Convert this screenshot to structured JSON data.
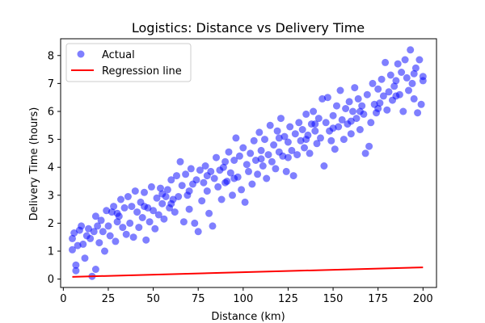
{
  "colors": {
    "points": "#0000ff",
    "regression": "#ff0000",
    "axes": "#000000",
    "background": "#ffffff"
  },
  "chart_data": {
    "type": "scatter",
    "title": "Logistics: Distance vs Delivery Time",
    "xlabel": "Distance (km)",
    "ylabel": "Delivery Time (hours)",
    "xlim": [
      -1.5,
      207.5
    ],
    "ylim": [
      -0.3,
      8.6
    ],
    "xticks": [
      0,
      25,
      50,
      75,
      100,
      125,
      150,
      175,
      200
    ],
    "yticks": [
      0,
      1,
      2,
      3,
      4,
      5,
      6,
      7,
      8
    ],
    "grid": false,
    "legend": {
      "placement": "top-left",
      "entries": [
        "Actual",
        "Regression line"
      ]
    },
    "series": [
      {
        "name": "Actual",
        "kind": "scatter",
        "color": "#0000ff",
        "points": [
          [
            5,
            1.05
          ],
          [
            5,
            1.45
          ],
          [
            6,
            1.65
          ],
          [
            7,
            0.3
          ],
          [
            7,
            0.5
          ],
          [
            8,
            1.2
          ],
          [
            9,
            1.75
          ],
          [
            10,
            1.9
          ],
          [
            11,
            1.25
          ],
          [
            12,
            0.75
          ],
          [
            13,
            1.55
          ],
          [
            14,
            1.8
          ],
          [
            15,
            1.45
          ],
          [
            16,
            0.1
          ],
          [
            17,
            1.7
          ],
          [
            18,
            2.25
          ],
          [
            18,
            0.35
          ],
          [
            19,
            1.9
          ],
          [
            20,
            1.3
          ],
          [
            21,
            2.1
          ],
          [
            22,
            1.7
          ],
          [
            23,
            1.0
          ],
          [
            24,
            2.45
          ],
          [
            25,
            1.9
          ],
          [
            26,
            1.55
          ],
          [
            27,
            2.4
          ],
          [
            28,
            2.6
          ],
          [
            29,
            1.35
          ],
          [
            30,
            2.05
          ],
          [
            31,
            2.25
          ],
          [
            32,
            2.85
          ],
          [
            33,
            1.85
          ],
          [
            34,
            2.55
          ],
          [
            35,
            1.6
          ],
          [
            36,
            2.95
          ],
          [
            37,
            2.0
          ],
          [
            38,
            2.6
          ],
          [
            39,
            1.5
          ],
          [
            40,
            3.15
          ],
          [
            41,
            2.4
          ],
          [
            42,
            1.85
          ],
          [
            43,
            2.75
          ],
          [
            44,
            2.2
          ],
          [
            45,
            3.1
          ],
          [
            46,
            1.4
          ],
          [
            47,
            2.55
          ],
          [
            48,
            2.05
          ],
          [
            49,
            3.3
          ],
          [
            50,
            2.45
          ],
          [
            51,
            1.8
          ],
          [
            52,
            2.9
          ],
          [
            53,
            2.3
          ],
          [
            54,
            3.25
          ],
          [
            55,
            2.7
          ],
          [
            56,
            2.15
          ],
          [
            57,
            2.95
          ],
          [
            58,
            3.2
          ],
          [
            59,
            2.55
          ],
          [
            60,
            3.55
          ],
          [
            61,
            2.85
          ],
          [
            62,
            2.4
          ],
          [
            63,
            3.7
          ],
          [
            64,
            2.95
          ],
          [
            65,
            4.2
          ],
          [
            66,
            3.35
          ],
          [
            67,
            2.05
          ],
          [
            68,
            3.75
          ],
          [
            69,
            3.0
          ],
          [
            70,
            2.5
          ],
          [
            71,
            3.95
          ],
          [
            72,
            3.4
          ],
          [
            73,
            2.0
          ],
          [
            74,
            3.55
          ],
          [
            75,
            1.7
          ],
          [
            76,
            3.9
          ],
          [
            77,
            2.8
          ],
          [
            78,
            3.45
          ],
          [
            79,
            4.05
          ],
          [
            80,
            3.15
          ],
          [
            81,
            2.35
          ],
          [
            82,
            3.85
          ],
          [
            83,
            1.9
          ],
          [
            84,
            3.6
          ],
          [
            85,
            4.35
          ],
          [
            86,
            3.3
          ],
          [
            87,
            3.9
          ],
          [
            88,
            2.85
          ],
          [
            89,
            4.0
          ],
          [
            90,
            4.2
          ],
          [
            91,
            3.5
          ],
          [
            92,
            4.55
          ],
          [
            93,
            3.8
          ],
          [
            94,
            3.0
          ],
          [
            95,
            4.25
          ],
          [
            96,
            5.05
          ],
          [
            97,
            3.65
          ],
          [
            98,
            4.4
          ],
          [
            99,
            3.2
          ],
          [
            100,
            4.7
          ],
          [
            101,
            2.75
          ],
          [
            102,
            4.1
          ],
          [
            103,
            3.85
          ],
          [
            104,
            4.5
          ],
          [
            105,
            3.4
          ],
          [
            106,
            4.95
          ],
          [
            107,
            4.25
          ],
          [
            108,
            3.75
          ],
          [
            109,
            5.25
          ],
          [
            110,
            4.6
          ],
          [
            111,
            4.05
          ],
          [
            112,
            5.0
          ],
          [
            113,
            3.6
          ],
          [
            114,
            4.45
          ],
          [
            115,
            5.5
          ],
          [
            116,
            4.2
          ],
          [
            117,
            4.8
          ],
          [
            118,
            3.95
          ],
          [
            119,
            5.3
          ],
          [
            120,
            4.55
          ],
          [
            121,
            5.75
          ],
          [
            122,
            4.4
          ],
          [
            123,
            5.1
          ],
          [
            124,
            3.85
          ],
          [
            125,
            4.9
          ],
          [
            126,
            5.45
          ],
          [
            127,
            4.6
          ],
          [
            128,
            3.7
          ],
          [
            129,
            5.2
          ],
          [
            130,
            4.45
          ],
          [
            131,
            5.6
          ],
          [
            132,
            4.95
          ],
          [
            133,
            5.35
          ],
          [
            134,
            4.7
          ],
          [
            135,
            5.9
          ],
          [
            136,
            5.15
          ],
          [
            137,
            4.5
          ],
          [
            138,
            5.55
          ],
          [
            139,
            6.0
          ],
          [
            140,
            5.3
          ],
          [
            141,
            4.85
          ],
          [
            142,
            5.75
          ],
          [
            143,
            5.05
          ],
          [
            144,
            6.45
          ],
          [
            145,
            4.05
          ],
          [
            146,
            5.6
          ],
          [
            147,
            6.5
          ],
          [
            148,
            5.3
          ],
          [
            149,
            4.95
          ],
          [
            150,
            5.85
          ],
          [
            151,
            4.65
          ],
          [
            152,
            6.2
          ],
          [
            153,
            5.45
          ],
          [
            154,
            6.75
          ],
          [
            155,
            5.7
          ],
          [
            156,
            5.0
          ],
          [
            157,
            6.1
          ],
          [
            158,
            5.55
          ],
          [
            159,
            6.35
          ],
          [
            160,
            5.2
          ],
          [
            161,
            6.0
          ],
          [
            162,
            6.85
          ],
          [
            163,
            5.75
          ],
          [
            164,
            6.45
          ],
          [
            165,
            5.35
          ],
          [
            166,
            6.2
          ],
          [
            167,
            5.9
          ],
          [
            168,
            4.5
          ],
          [
            169,
            6.6
          ],
          [
            170,
            4.75
          ],
          [
            171,
            5.6
          ],
          [
            172,
            7.0
          ],
          [
            173,
            6.25
          ],
          [
            174,
            5.95
          ],
          [
            175,
            6.8
          ],
          [
            176,
            6.3
          ],
          [
            177,
            7.15
          ],
          [
            178,
            6.55
          ],
          [
            179,
            7.75
          ],
          [
            180,
            6.05
          ],
          [
            181,
            6.7
          ],
          [
            182,
            7.3
          ],
          [
            183,
            6.4
          ],
          [
            184,
            6.9
          ],
          [
            185,
            7.1
          ],
          [
            186,
            7.7
          ],
          [
            187,
            6.6
          ],
          [
            188,
            7.4
          ],
          [
            189,
            6.0
          ],
          [
            190,
            7.85
          ],
          [
            191,
            7.2
          ],
          [
            192,
            6.75
          ],
          [
            193,
            8.2
          ],
          [
            194,
            7.0
          ],
          [
            195,
            6.45
          ],
          [
            196,
            7.55
          ],
          [
            197,
            5.95
          ],
          [
            198,
            7.85
          ],
          [
            199,
            6.25
          ],
          [
            200,
            7.1
          ],
          [
            30,
            2.35
          ],
          [
            45,
            2.6
          ],
          [
            60,
            2.7
          ],
          [
            80,
            3.7
          ],
          [
            95,
            3.6
          ],
          [
            110,
            4.3
          ],
          [
            120,
            5.05
          ],
          [
            135,
            5.0
          ],
          [
            150,
            5.4
          ],
          [
            165,
            6.0
          ],
          [
            185,
            6.55
          ],
          [
            200,
            7.25
          ],
          [
            55,
            3.05
          ],
          [
            70,
            3.15
          ],
          [
            90,
            3.45
          ],
          [
            125,
            4.35
          ],
          [
            140,
            5.55
          ],
          [
            160,
            5.65
          ],
          [
            175,
            6.1
          ],
          [
            195,
            7.35
          ]
        ]
      },
      {
        "name": "Regression line",
        "kind": "line",
        "color": "#ff0000",
        "x": [
          5,
          200
        ],
        "y": [
          0.08,
          0.42
        ]
      }
    ]
  }
}
